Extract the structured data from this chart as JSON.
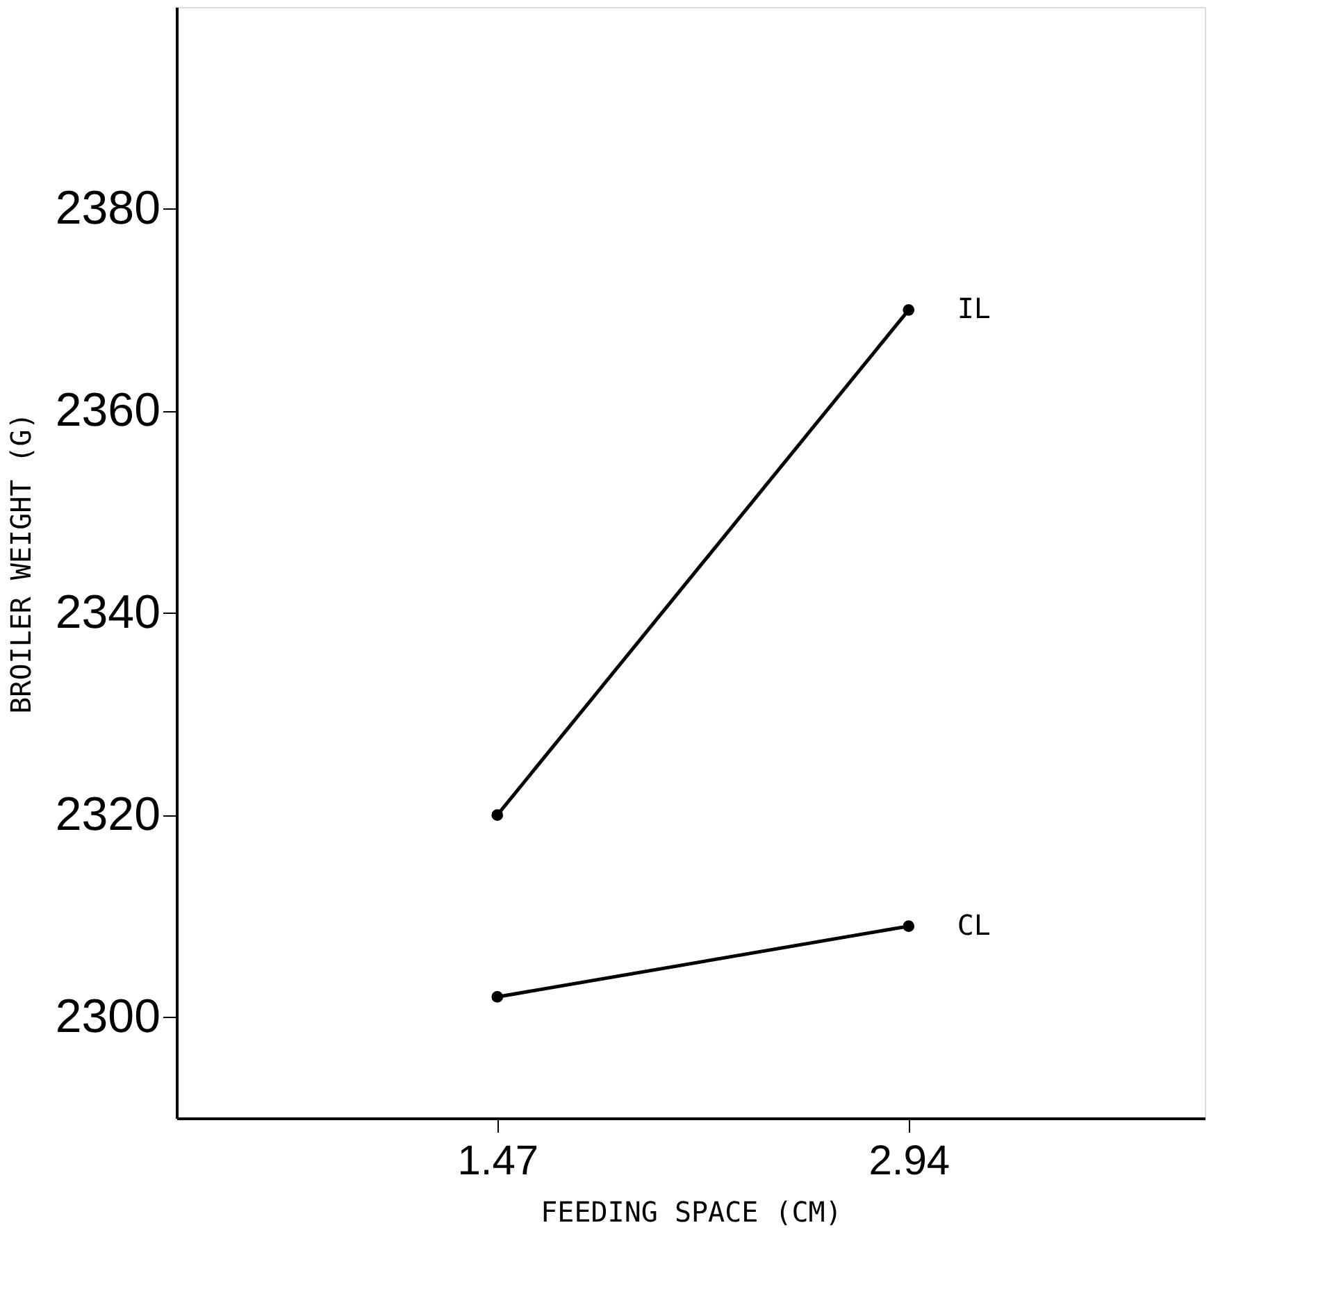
{
  "chart_data": {
    "type": "line",
    "xlabel": "FEEDING SPACE (CM)",
    "ylabel": "BROILER WEIGHT (G)",
    "categories": [
      "1.47",
      "2.94"
    ],
    "series": [
      {
        "name": "IL",
        "color": "#000000",
        "values": [
          2320,
          2370
        ]
      },
      {
        "name": "CL",
        "color": "#000000",
        "values": [
          2302,
          2309
        ]
      }
    ],
    "ylim": [
      2290,
      2400
    ],
    "yticks": [
      2300,
      2320,
      2340,
      2360,
      2380
    ],
    "grid": false,
    "legend": false,
    "marker": "circle",
    "line_style": "solid"
  }
}
